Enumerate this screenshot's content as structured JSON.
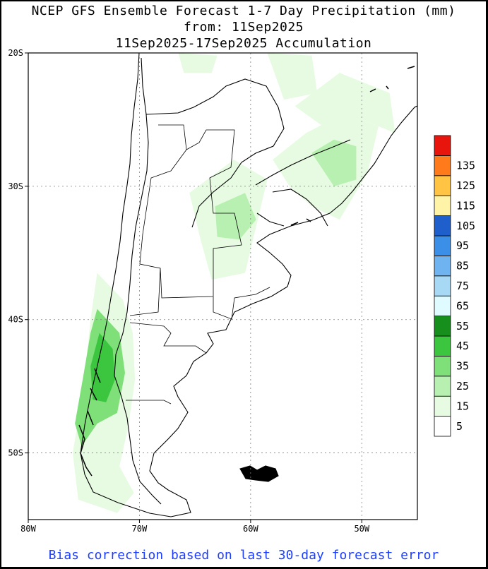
{
  "title": {
    "line1": "NCEP GFS Ensemble Forecast 1-7 Day Precipitation (mm)",
    "line2": "from: 11Sep2025",
    "line3": "11Sep2025-17Sep2025 Accumulation"
  },
  "footer": "Bias correction based on last 30-day forecast error",
  "map": {
    "lon_range": [
      -80,
      -45
    ],
    "lat_range": [
      -55,
      -20
    ],
    "x_ticks": [
      {
        "lon": -80,
        "label": "80W"
      },
      {
        "lon": -70,
        "label": "70W"
      },
      {
        "lon": -60,
        "label": "60W"
      },
      {
        "lon": -50,
        "label": "50W"
      }
    ],
    "y_ticks": [
      {
        "lat": -20,
        "label": "20S"
      },
      {
        "lat": -30,
        "label": "30S"
      },
      {
        "lat": -40,
        "label": "40S"
      },
      {
        "lat": -50,
        "label": "50S"
      }
    ],
    "grid": true,
    "grid_style": "dotted"
  },
  "legend": {
    "placement": "right",
    "levels": [
      {
        "label": "5",
        "color": "#ffffff"
      },
      {
        "label": "15",
        "color": "#e6fbe1"
      },
      {
        "label": "25",
        "color": "#b7f0b0"
      },
      {
        "label": "35",
        "color": "#7fe07a"
      },
      {
        "label": "45",
        "color": "#3cc63f"
      },
      {
        "label": "55",
        "color": "#178f1d"
      },
      {
        "label": "65",
        "color": "#e0fbff"
      },
      {
        "label": "75",
        "color": "#a7d9f5"
      },
      {
        "label": "85",
        "color": "#6fb3f0"
      },
      {
        "label": "95",
        "color": "#3c8fe6"
      },
      {
        "label": "105",
        "color": "#1f5fcc"
      },
      {
        "label": "115",
        "color": "#fff3a8"
      },
      {
        "label": "125",
        "color": "#ffc443"
      },
      {
        "label": "135",
        "color": "#ff7a1a"
      },
      {
        "label": "",
        "color": "#e8150c"
      }
    ]
  },
  "precip_areas": [
    {
      "name": "patagonia-andes-coast",
      "level": "45",
      "lonlat": [
        [
          -73.6,
          -41.0
        ],
        [
          -72.4,
          -42.2
        ],
        [
          -72.2,
          -44.5
        ],
        [
          -73.0,
          -46.2
        ],
        [
          -74.2,
          -46.0
        ],
        [
          -74.4,
          -43.5
        ]
      ]
    },
    {
      "name": "patagonia-andes-mid",
      "level": "35",
      "lonlat": [
        [
          -73.8,
          -39.2
        ],
        [
          -71.8,
          -41.0
        ],
        [
          -71.3,
          -44.0
        ],
        [
          -72.0,
          -47.0
        ],
        [
          -73.8,
          -47.8
        ],
        [
          -75.2,
          -49.5
        ],
        [
          -75.8,
          -47.8
        ],
        [
          -75.0,
          -44.0
        ],
        [
          -74.4,
          -41.0
        ]
      ]
    },
    {
      "name": "patagonia-andes-light",
      "level": "15",
      "lonlat": [
        [
          -73.8,
          -36.5
        ],
        [
          -71.5,
          -38.5
        ],
        [
          -70.6,
          -41.0
        ],
        [
          -70.4,
          -44.5
        ],
        [
          -71.0,
          -48.0
        ],
        [
          -71.8,
          -51.0
        ],
        [
          -70.5,
          -53.0
        ],
        [
          -72.0,
          -54.5
        ],
        [
          -75.5,
          -53.5
        ],
        [
          -76.0,
          -50.0
        ],
        [
          -75.0,
          -45.0
        ],
        [
          -74.4,
          -40.0
        ]
      ]
    },
    {
      "name": "pampas-central",
      "level": "15",
      "lonlat": [
        [
          -65.5,
          -30.5
        ],
        [
          -61.5,
          -28.0
        ],
        [
          -58.5,
          -29.5
        ],
        [
          -59.5,
          -33.0
        ],
        [
          -60.5,
          -36.5
        ],
        [
          -63.5,
          -37.0
        ],
        [
          -64.5,
          -34.0
        ]
      ]
    },
    {
      "name": "pampas-core",
      "level": "25",
      "lonlat": [
        [
          -63.2,
          -31.5
        ],
        [
          -60.5,
          -30.5
        ],
        [
          -59.5,
          -32.5
        ],
        [
          -61.0,
          -34.0
        ],
        [
          -63.0,
          -33.8
        ]
      ]
    },
    {
      "name": "south-brazil-uruguay",
      "level": "15",
      "lonlat": [
        [
          -58.0,
          -28.0
        ],
        [
          -55.0,
          -26.0
        ],
        [
          -51.5,
          -24.5
        ],
        [
          -48.5,
          -25.5
        ],
        [
          -49.5,
          -29.0
        ],
        [
          -52.0,
          -32.5
        ],
        [
          -54.5,
          -31.5
        ],
        [
          -56.5,
          -30.0
        ]
      ]
    },
    {
      "name": "south-brazil-core",
      "level": "25",
      "lonlat": [
        [
          -54.5,
          -27.5
        ],
        [
          -52.5,
          -26.5
        ],
        [
          -50.5,
          -27.0
        ],
        [
          -50.5,
          -29.5
        ],
        [
          -52.5,
          -30.0
        ]
      ]
    },
    {
      "name": "southeast-brazil-coast",
      "level": "15",
      "lonlat": [
        [
          -56.0,
          -24.0
        ],
        [
          -52.0,
          -21.5
        ],
        [
          -47.5,
          -23.0
        ],
        [
          -47.0,
          -26.0
        ],
        [
          -50.0,
          -25.0
        ],
        [
          -53.5,
          -25.5
        ]
      ]
    },
    {
      "name": "bolivia-north",
      "level": "15",
      "lonlat": [
        [
          -66.5,
          -20.0
        ],
        [
          -63.0,
          -20.2
        ],
        [
          -63.5,
          -21.5
        ],
        [
          -66.0,
          -21.5
        ]
      ]
    },
    {
      "name": "paraguay-north",
      "level": "15",
      "lonlat": [
        [
          -58.5,
          -20.0
        ],
        [
          -54.5,
          -20.2
        ],
        [
          -54.0,
          -23.0
        ],
        [
          -57.0,
          -23.5
        ]
      ]
    }
  ]
}
